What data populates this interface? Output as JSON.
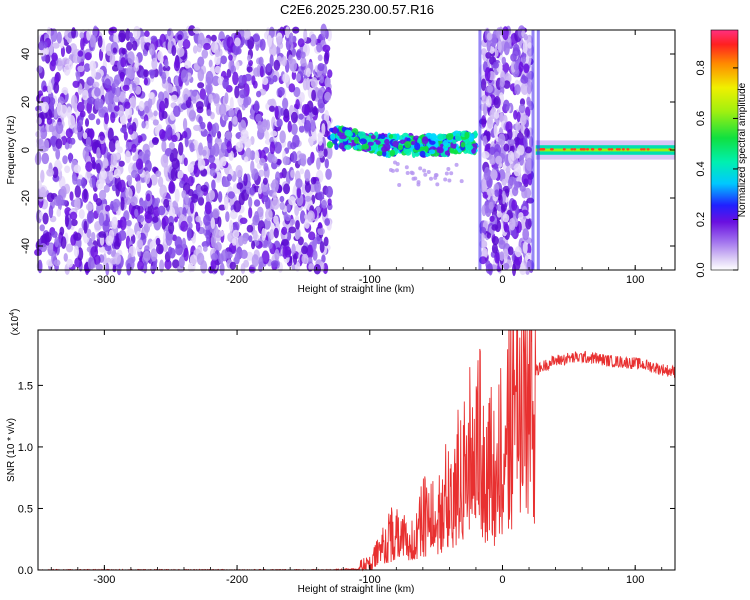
{
  "title": "C2E6.2025.230.00.57.R16",
  "chart_data": [
    {
      "type": "heatmap",
      "xlabel": "Height of straight line (km)",
      "ylabel": "Frequency (Hz)",
      "xlim": [
        -350,
        130
      ],
      "ylim": [
        -50,
        50
      ],
      "xticks": [
        -300,
        -200,
        -100,
        0,
        100
      ],
      "xtick_labels": [
        "-300",
        "-200",
        "-100",
        "0",
        "100"
      ],
      "yticks": [
        -40,
        -20,
        0,
        20,
        40
      ],
      "ytick_labels": [
        "-40",
        "-20",
        "0",
        "20",
        "40"
      ],
      "colorbar": {
        "label": "Normalized spectral amplitude",
        "range": [
          0,
          0.95
        ],
        "ticks": [
          0.0,
          0.2,
          0.4,
          0.6,
          0.8
        ],
        "tick_labels": [
          "0.0",
          "0.2",
          "0.4",
          "0.6",
          "0.8"
        ]
      },
      "features": {
        "noise_region_1_km": [
          -350,
          -130
        ],
        "signal_track_1_km": [
          -130,
          -20
        ],
        "signal_track_1_freq_hz": [
          6,
          2,
          2,
          3
        ],
        "noise_region_2_km": [
          -15,
          22
        ],
        "signal_track_2_km": [
          25,
          130
        ],
        "signal_track_2_freq_hz": 0
      }
    },
    {
      "type": "line",
      "xlabel": "Height of straight line (km)",
      "ylabel": "SNR (10 * v/v)",
      "y_multiplier": "(x10",
      "y_multiplier_exp": "4",
      "y_multiplier_close": ")",
      "xlim": [
        -350,
        130
      ],
      "ylim": [
        0,
        1.95
      ],
      "xticks": [
        -300,
        -200,
        -100,
        0,
        100
      ],
      "xtick_labels": [
        "-300",
        "-200",
        "-100",
        "0",
        "100"
      ],
      "yticks": [
        0.0,
        0.5,
        1.0,
        1.5
      ],
      "ytick_labels": [
        "0.0",
        "0.5",
        "1.0",
        "1.5"
      ],
      "series": [
        {
          "color": "#e83030",
          "x": [
            -350,
            -200,
            -130,
            -110,
            -100,
            -95,
            -90,
            -85,
            -80,
            -75,
            -70,
            -65,
            -60,
            -55,
            -50,
            -45,
            -40,
            -35,
            -30,
            -25,
            -20,
            -15,
            -10,
            -5,
            0,
            5,
            10,
            15,
            20,
            25,
            30,
            35,
            40,
            50,
            60,
            70,
            80,
            90,
            100,
            110,
            120,
            130
          ],
          "y": [
            0.0,
            0.0,
            0.0,
            0.01,
            0.05,
            0.12,
            0.2,
            0.3,
            0.35,
            0.25,
            0.3,
            0.4,
            0.45,
            0.5,
            0.55,
            0.6,
            0.7,
            0.8,
            0.9,
            1.05,
            1.2,
            1.1,
            1.0,
            0.95,
            1.3,
            1.45,
            1.5,
            1.55,
            1.6,
            1.62,
            1.65,
            1.68,
            1.7,
            1.72,
            1.73,
            1.72,
            1.7,
            1.69,
            1.68,
            1.66,
            1.63,
            1.61
          ]
        }
      ]
    }
  ]
}
